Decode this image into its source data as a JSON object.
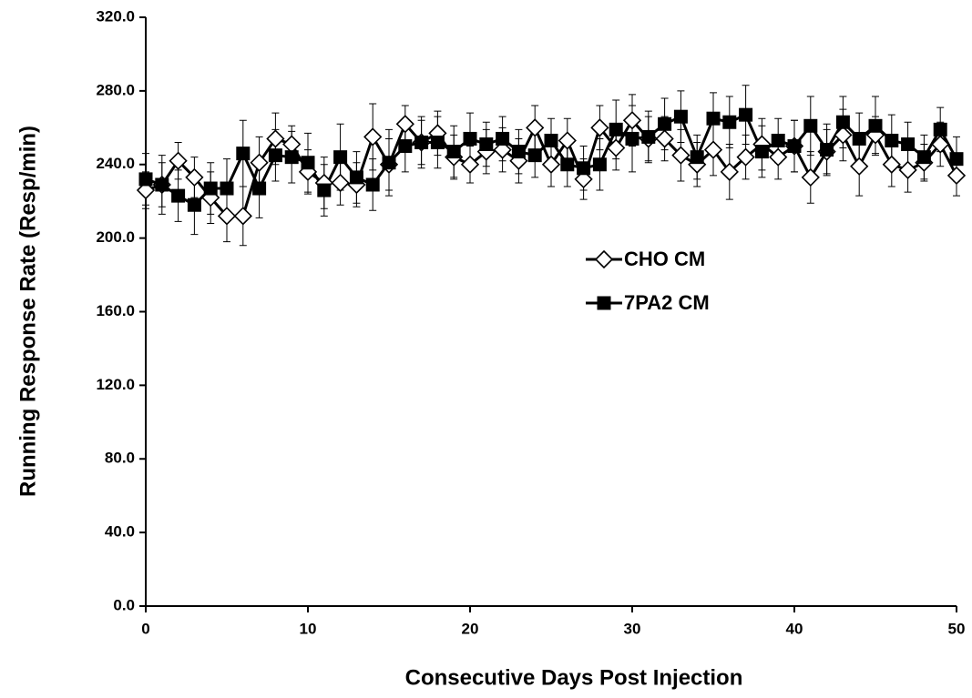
{
  "chart_data": {
    "type": "line",
    "x_label": "Consecutive Days Post Injection",
    "y_label": "Running Response Rate (Resp/min)",
    "x": [
      0,
      1,
      2,
      3,
      4,
      5,
      6,
      7,
      8,
      9,
      10,
      11,
      12,
      13,
      14,
      15,
      16,
      17,
      18,
      19,
      20,
      21,
      22,
      23,
      24,
      25,
      26,
      27,
      28,
      29,
      30,
      31,
      32,
      33,
      34,
      35,
      36,
      37,
      38,
      39,
      40,
      41,
      42,
      43,
      44,
      45,
      46,
      47,
      48,
      49,
      50
    ],
    "xlim": [
      0,
      50
    ],
    "xticks": [
      0,
      10,
      20,
      30,
      40,
      50
    ],
    "ylim": [
      0,
      320
    ],
    "yticks": [
      {
        "value": 0,
        "label": "0.0"
      },
      {
        "value": 40,
        "label": "40.0"
      },
      {
        "value": 80,
        "label": "80.0"
      },
      {
        "value": 120,
        "label": "120.0"
      },
      {
        "value": 160,
        "label": "160.0"
      },
      {
        "value": 200,
        "label": "200.0"
      },
      {
        "value": 240,
        "label": "240.0"
      },
      {
        "value": 280,
        "label": "280.0"
      },
      {
        "value": 320,
        "label": "320.0"
      }
    ],
    "grid": false,
    "legend": "center-right",
    "series": [
      {
        "name": "CHO CM",
        "color": "#000000",
        "marker": "diamond-open",
        "values": [
          226,
          229,
          242,
          233,
          222,
          212,
          212,
          241,
          254,
          251,
          236,
          230,
          230,
          229,
          255,
          240,
          262,
          252,
          257,
          244,
          240,
          247,
          248,
          242,
          260,
          240,
          253,
          232,
          260,
          249,
          264,
          254,
          254,
          245,
          240,
          248,
          236,
          244,
          251,
          244,
          250,
          233,
          247,
          256,
          239,
          256,
          240,
          237,
          241,
          251,
          234
        ],
        "errors": [
          10,
          12,
          10,
          11,
          14,
          14,
          16,
          14,
          14,
          10,
          12,
          14,
          12,
          12,
          18,
          14,
          10,
          12,
          12,
          12,
          10,
          12,
          12,
          12,
          12,
          12,
          12,
          11,
          12,
          12,
          14,
          12,
          12,
          14,
          12,
          14,
          15,
          12,
          14,
          12,
          14,
          14,
          12,
          14,
          16,
          10,
          12,
          12,
          10,
          12,
          11
        ]
      },
      {
        "name": "7PA2 CM",
        "color": "#000000",
        "marker": "square-filled",
        "values": [
          232,
          229,
          223,
          218,
          227,
          227,
          246,
          227,
          245,
          244,
          241,
          226,
          244,
          233,
          229,
          241,
          250,
          252,
          252,
          247,
          254,
          251,
          254,
          247,
          245,
          253,
          240,
          238,
          240,
          259,
          254,
          255,
          262,
          266,
          244,
          265,
          263,
          267,
          247,
          253,
          250,
          261,
          248,
          263,
          254,
          261,
          253,
          251,
          244,
          259,
          243
        ],
        "errors": [
          14,
          16,
          14,
          16,
          14,
          16,
          18,
          16,
          14,
          14,
          16,
          14,
          18,
          14,
          14,
          18,
          14,
          14,
          14,
          14,
          14,
          12,
          12,
          12,
          12,
          12,
          12,
          12,
          14,
          16,
          18,
          14,
          14,
          14,
          12,
          14,
          14,
          16,
          14,
          12,
          14,
          16,
          14,
          14,
          14,
          16,
          14,
          12,
          12,
          12,
          12
        ]
      }
    ]
  }
}
